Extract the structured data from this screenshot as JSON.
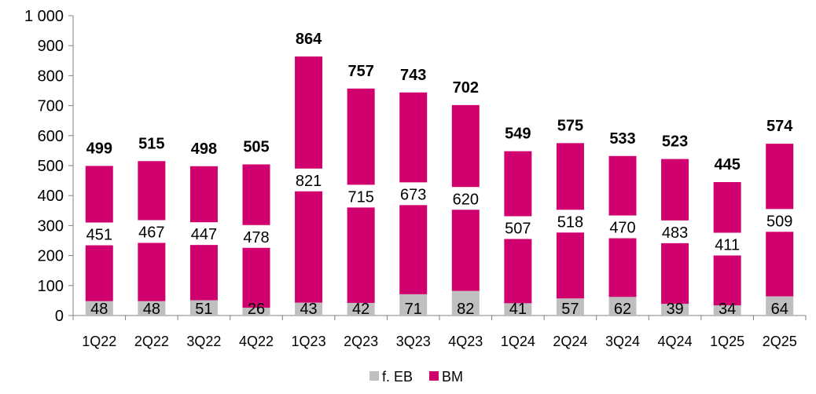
{
  "chart_data": {
    "type": "bar",
    "stacked": true,
    "title": "",
    "xlabel": "",
    "ylabel": "",
    "ylim": [
      0,
      1000
    ],
    "yticks": [
      0,
      100,
      200,
      300,
      400,
      500,
      600,
      700,
      800,
      900,
      1000
    ],
    "ytick_labels": [
      "0",
      "100",
      "200",
      "300",
      "400",
      "500",
      "600",
      "700",
      "800",
      "900",
      "1 000"
    ],
    "grid": false,
    "legend_position": "bottom",
    "categories": [
      "1Q22",
      "2Q22",
      "3Q22",
      "4Q22",
      "1Q23",
      "2Q23",
      "3Q23",
      "4Q23",
      "1Q24",
      "2Q24",
      "3Q24",
      "4Q24",
      "1Q25",
      "2Q25"
    ],
    "series": [
      {
        "name": "f. EB",
        "color": "#bfbfbf",
        "values": [
          48,
          48,
          51,
          26,
          43,
          42,
          71,
          82,
          41,
          57,
          62,
          39,
          34,
          64
        ]
      },
      {
        "name": "BM",
        "color": "#d0006f",
        "values": [
          451,
          467,
          447,
          478,
          821,
          715,
          673,
          620,
          507,
          518,
          470,
          483,
          411,
          509
        ]
      }
    ],
    "totals": [
      499,
      515,
      498,
      505,
      864,
      757,
      743,
      702,
      549,
      575,
      533,
      523,
      445,
      574
    ]
  }
}
